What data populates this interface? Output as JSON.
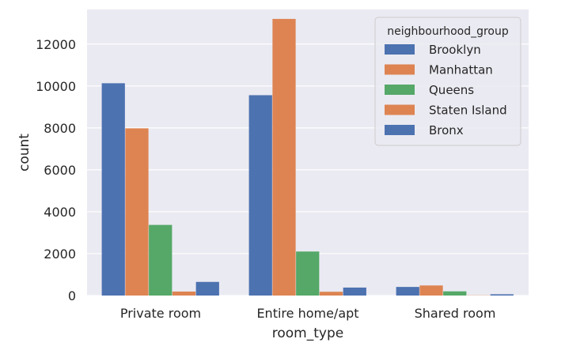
{
  "chart_data": {
    "type": "bar",
    "title": "",
    "xlabel": "room_type",
    "ylabel": "count",
    "categories": [
      "Private room",
      "Entire home/apt",
      "Shared room"
    ],
    "ylim": [
      0,
      13650
    ],
    "yticks": [
      0,
      2000,
      4000,
      6000,
      8000,
      10000,
      12000
    ],
    "grid": true,
    "background": "#eaeaf2",
    "legend": {
      "title": "neighbourhood_group",
      "placement": "top-right"
    },
    "series": [
      {
        "name": "Brooklyn",
        "color": "#4c72b0",
        "values": [
          10130,
          9560,
          410
        ]
      },
      {
        "name": "Manhattan",
        "color": "#dd8452",
        "values": [
          7980,
          13200,
          480
        ]
      },
      {
        "name": "Queens",
        "color": "#55a868",
        "values": [
          3370,
          2100,
          200
        ]
      },
      {
        "name": "Staten Island",
        "color": "#dd8452",
        "values": [
          190,
          180,
          10
        ]
      },
      {
        "name": "Bronx",
        "color": "#4c72b0",
        "values": [
          650,
          380,
          60
        ]
      }
    ]
  }
}
